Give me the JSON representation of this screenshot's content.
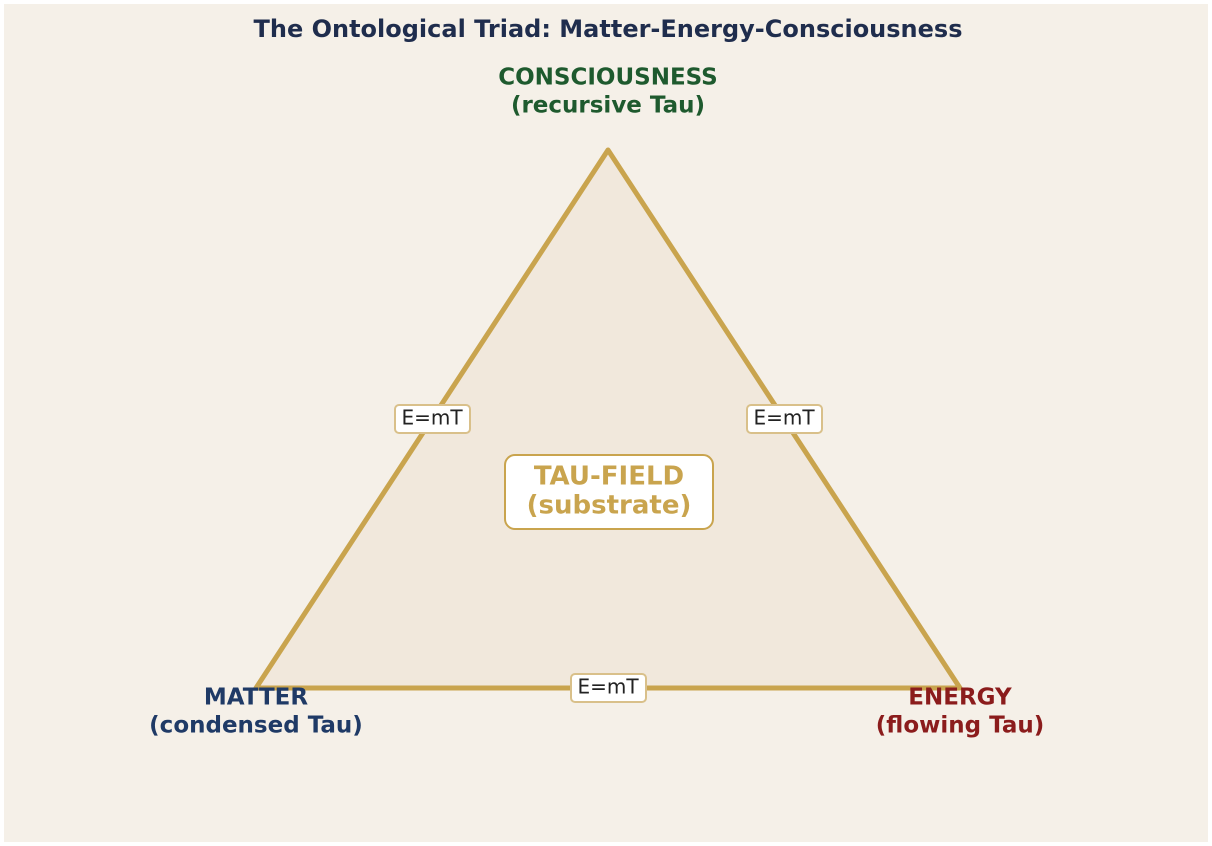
{
  "title": "The Ontological Triad: Matter-Energy-Consciousness",
  "nodes": [
    {
      "label": "CONSCIOUSNESS",
      "sublabel": "(recursive Tau)"
    },
    {
      "label": "MATTER",
      "sublabel": "(condensed Tau)"
    },
    {
      "label": "ENERGY",
      "sublabel": "(flowing Tau)"
    }
  ],
  "center": {
    "label": "TAU-FIELD",
    "sublabel": "(substrate)"
  },
  "edges": [
    {
      "label": "E=mT"
    },
    {
      "label": "E=mT"
    },
    {
      "label": "E=mT"
    }
  ]
}
